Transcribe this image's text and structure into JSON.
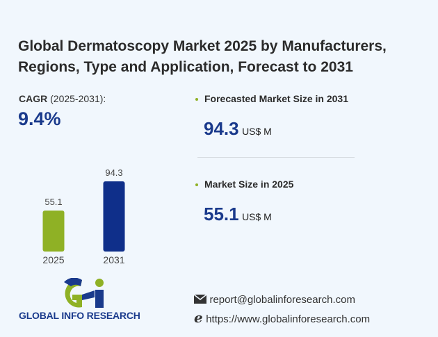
{
  "title": "Global Dermatoscopy Market 2025 by Manufacturers, Regions, Type and Application, Forecast to 2031",
  "cagr": {
    "label": "CAGR",
    "period": "(2025-2031):",
    "value": "9.4%"
  },
  "stats": [
    {
      "label": "Forecasted Market Size in 2031",
      "value": "94.3",
      "unit": "US$ M"
    },
    {
      "label": "Market Size in 2025",
      "value": "55.1",
      "unit": "US$ M"
    }
  ],
  "chart_data": {
    "type": "bar",
    "categories": [
      "2025",
      "2031"
    ],
    "values": [
      55.1,
      94.3
    ],
    "data_labels": [
      "55.1",
      "94.3"
    ],
    "colors": [
      "#8fb125",
      "#0f2f8a"
    ],
    "ylim": [
      0,
      94.3
    ],
    "grid": false
  },
  "logo": {
    "text": "GLOBAL INFO RESEARCH",
    "colors": [
      "#1a3a8c",
      "#8fb125"
    ]
  },
  "contact": {
    "email_icon": "envelope-icon",
    "email": "report@globalinforesearch.com",
    "web_icon": "internet-explorer-icon",
    "website": "https://www.globalinforesearch.com"
  }
}
